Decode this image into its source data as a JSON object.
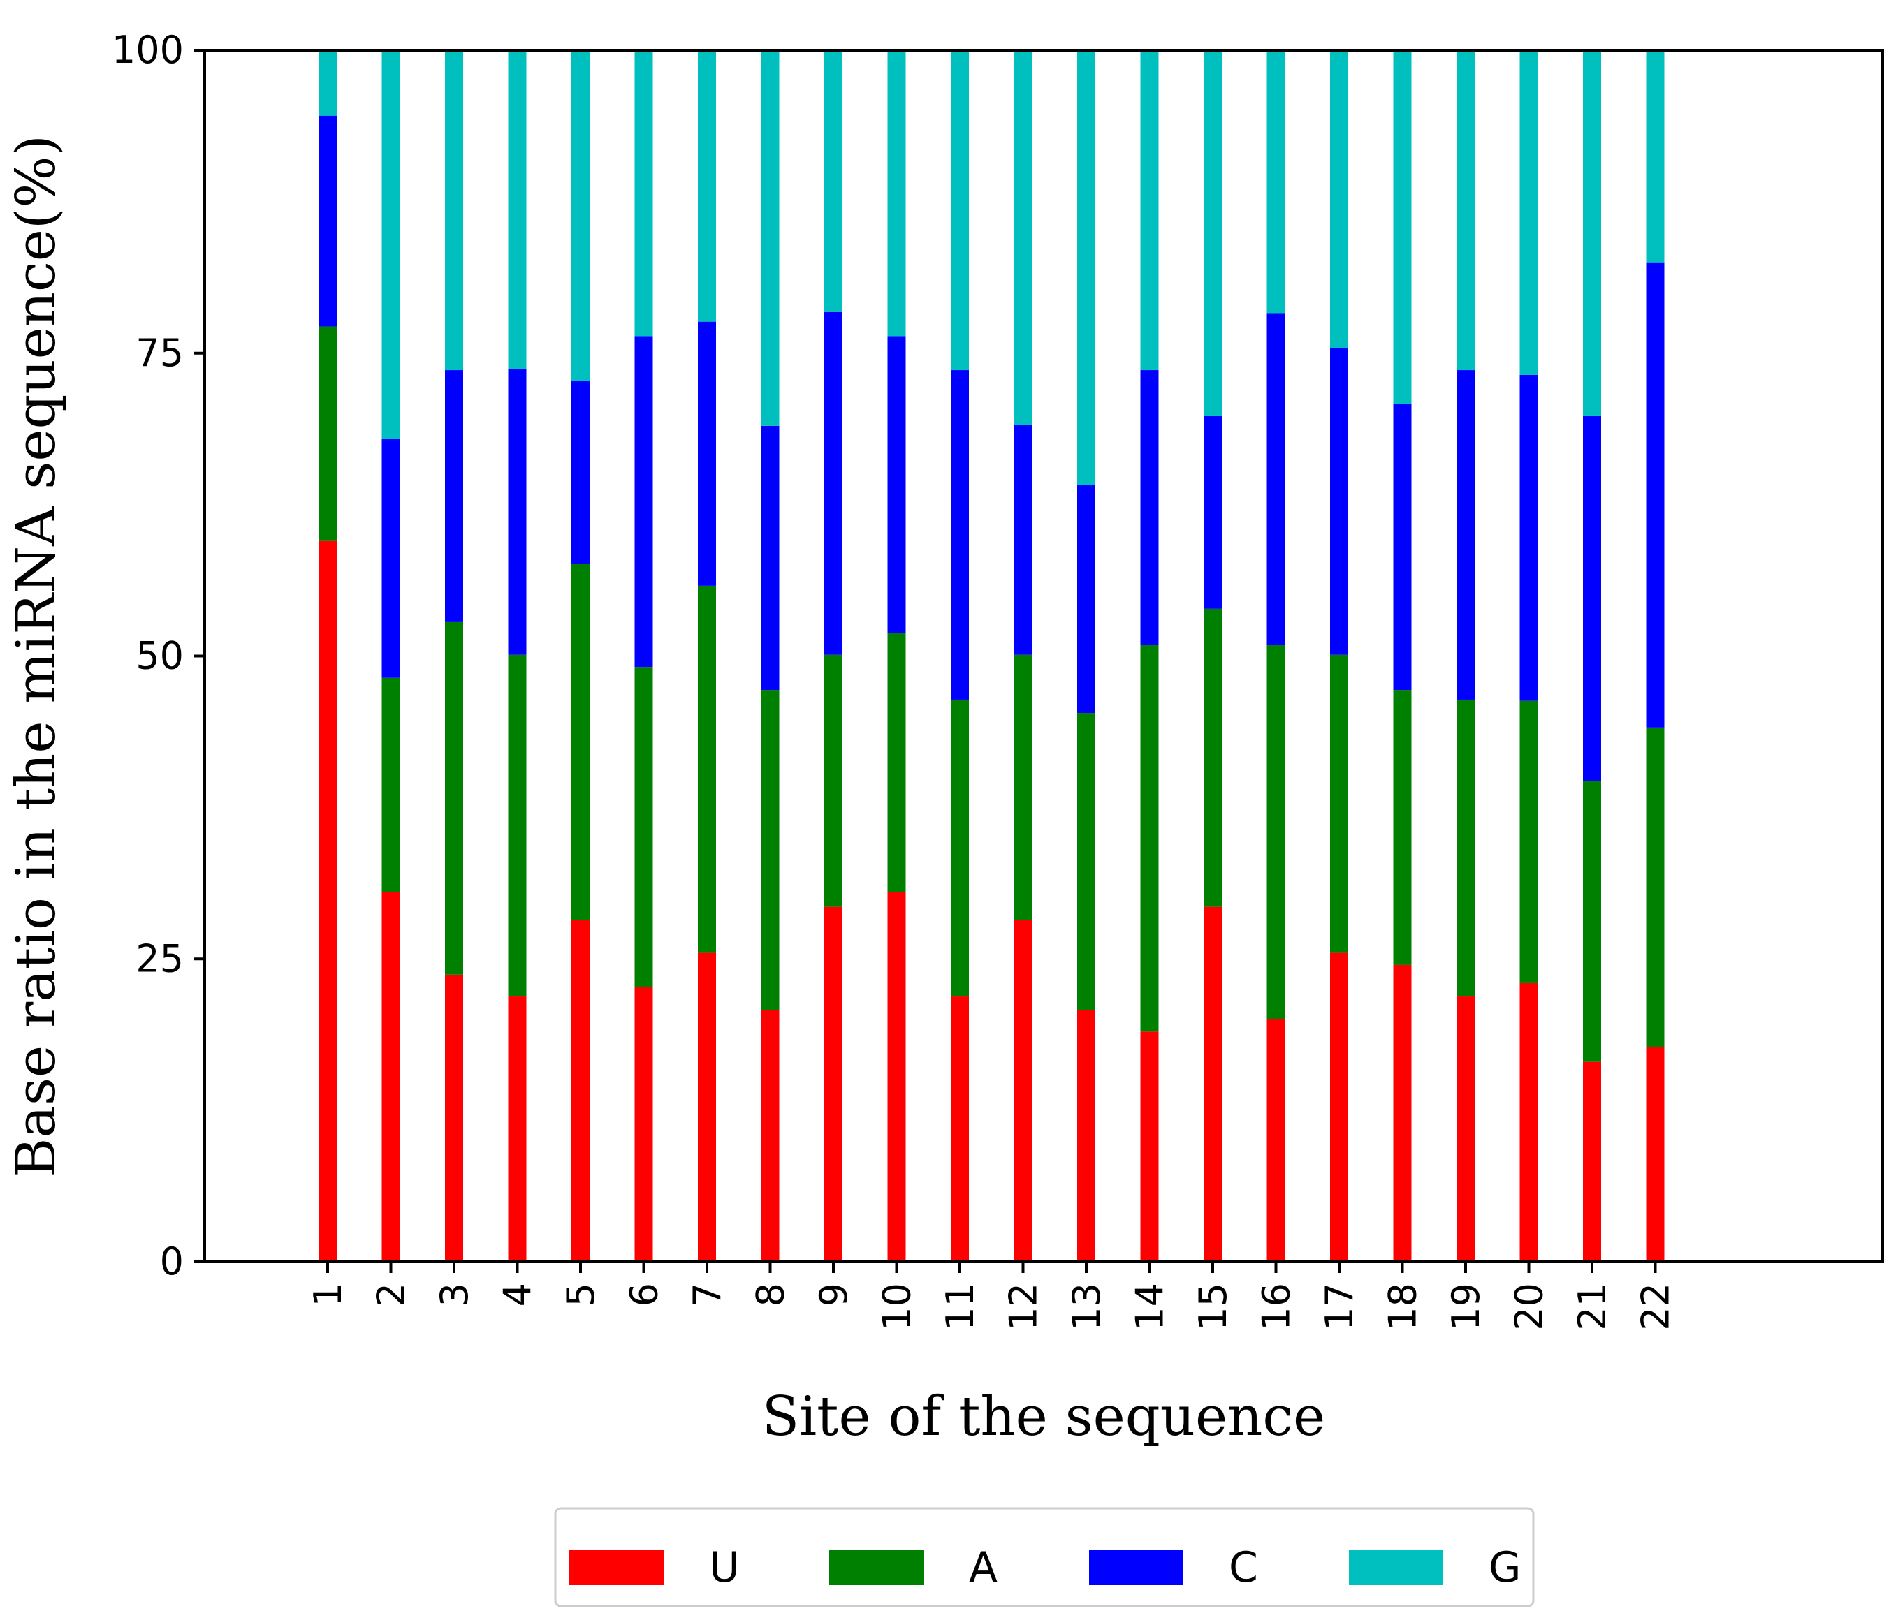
{
  "chart_data": {
    "type": "bar",
    "stacked": true,
    "title": "",
    "xlabel": "Site of the sequence",
    "ylabel": "Base ratio in the miRNA sequence(%)",
    "ylim": [
      0,
      100
    ],
    "yticks": [
      "0",
      "25",
      "50",
      "75",
      "100"
    ],
    "categories": [
      "1",
      "2",
      "3",
      "4",
      "5",
      "6",
      "7",
      "8",
      "9",
      "10",
      "11",
      "12",
      "13",
      "14",
      "15",
      "16",
      "17",
      "18",
      "19",
      "20",
      "21",
      "22"
    ],
    "series": [
      {
        "name": "U",
        "color": "#ff0000",
        "values": [
          59.5,
          30.5,
          23.7,
          21.9,
          28.2,
          22.7,
          25.5,
          20.8,
          29.3,
          30.5,
          21.9,
          28.2,
          20.8,
          19.0,
          29.3,
          20.0,
          25.5,
          24.5,
          21.9,
          23.0,
          16.5,
          17.7
        ]
      },
      {
        "name": "A",
        "color": "#008000",
        "values": [
          17.7,
          17.7,
          29.1,
          28.2,
          29.4,
          26.4,
          30.3,
          26.4,
          20.8,
          21.4,
          24.5,
          21.9,
          24.5,
          31.9,
          24.6,
          30.9,
          24.6,
          22.7,
          24.5,
          23.3,
          23.2,
          26.4
        ]
      },
      {
        "name": "C",
        "color": "#0000ff",
        "values": [
          17.4,
          19.7,
          20.8,
          23.6,
          15.1,
          27.3,
          21.8,
          21.8,
          28.3,
          24.5,
          27.2,
          19.0,
          18.8,
          22.7,
          15.9,
          27.4,
          25.3,
          23.6,
          27.2,
          26.9,
          30.1,
          38.4
        ]
      },
      {
        "name": "G",
        "color": "#00bfbf",
        "values": [
          5.4,
          32.1,
          26.4,
          26.3,
          27.3,
          23.6,
          22.4,
          31.0,
          21.6,
          23.6,
          26.4,
          30.9,
          35.9,
          26.4,
          30.2,
          21.7,
          24.6,
          29.2,
          26.4,
          26.8,
          30.2,
          17.5
        ]
      }
    ],
    "legend": {
      "position": "bottom-center",
      "entries": [
        "U",
        "A",
        "C",
        "G"
      ]
    },
    "grid": false
  }
}
